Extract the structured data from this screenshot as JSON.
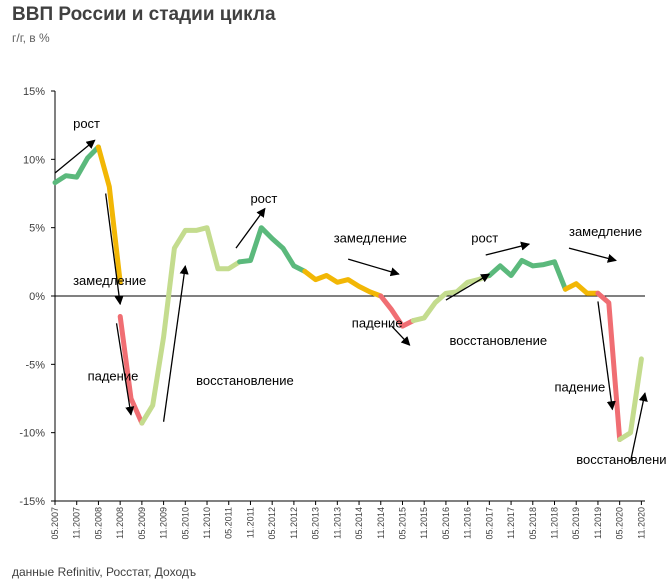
{
  "title": "ВВП России и стадии цикла",
  "subtitle": "г/г, в %",
  "source": "данные Refinitiv, Росстат, Доходъ",
  "colors": {
    "growth": "#5bb97c",
    "slowdown": "#f2b705",
    "decline": "#f06e73",
    "recovery": "#c4dc8e",
    "arrow": "#000000",
    "axis": "#000000",
    "text": "#404040"
  },
  "chart_data": {
    "type": "line",
    "title": "ВВП России и стадии цикла",
    "ylabel": "г/г, в %",
    "ylim": [
      -15,
      15
    ],
    "ytick_labels": [
      "15%",
      "10%",
      "5%",
      "0%",
      "-5%",
      "-10%",
      "-15%"
    ],
    "ytick_values": [
      15,
      10,
      5,
      0,
      -5,
      -10,
      -15
    ],
    "x_tick_labels": [
      "05.2007",
      "11.2007",
      "05.2008",
      "11.2008",
      "05.2009",
      "11.2009",
      "05.2010",
      "11.2010",
      "05.2011",
      "11.2011",
      "05.2012",
      "11.2012",
      "05.2013",
      "11.2013",
      "05.2014",
      "11.2014",
      "05.2015",
      "11.2015",
      "05.2016",
      "11.2016",
      "05.2017",
      "11.2017",
      "05.2018",
      "11.2018",
      "05.2019",
      "11.2019",
      "05.2020",
      "11.2020"
    ],
    "series": [
      {
        "phase": "рост",
        "x": [
          "2007-05",
          "2007-08",
          "2007-11",
          "2008-02",
          "2008-05"
        ],
        "values": [
          8.3,
          8.8,
          8.7,
          10.1,
          10.9
        ]
      },
      {
        "phase": "замедление",
        "x": [
          "2008-05",
          "2008-08",
          "2008-11"
        ],
        "values": [
          10.9,
          8.0,
          1.0
        ]
      },
      {
        "phase": "падение",
        "x": [
          "2008-11",
          "2009-02",
          "2009-05"
        ],
        "values": [
          -1.5,
          -7.5,
          -9.3
        ]
      },
      {
        "phase": "восстановление",
        "x": [
          "2009-05",
          "2009-08",
          "2009-11",
          "2010-02",
          "2010-05",
          "2010-08",
          "2010-11",
          "2011-02",
          "2011-05",
          "2011-08"
        ],
        "values": [
          -9.3,
          -8.0,
          -3.0,
          3.5,
          4.8,
          4.8,
          5.0,
          2.0,
          2.0,
          2.5
        ]
      },
      {
        "phase": "рост",
        "x": [
          "2011-08",
          "2011-11",
          "2012-02",
          "2012-05",
          "2012-08",
          "2012-11",
          "2013-02"
        ],
        "values": [
          2.5,
          2.6,
          5.0,
          4.2,
          3.5,
          2.2,
          1.8
        ]
      },
      {
        "phase": "замедление",
        "x": [
          "2013-02",
          "2013-05",
          "2013-08",
          "2013-11",
          "2014-02",
          "2014-05",
          "2014-08",
          "2014-11"
        ],
        "values": [
          1.8,
          1.2,
          1.5,
          1.0,
          1.2,
          0.7,
          0.3,
          0.0
        ]
      },
      {
        "phase": "падение",
        "x": [
          "2014-11",
          "2015-02",
          "2015-05",
          "2015-08"
        ],
        "values": [
          0.0,
          -1.0,
          -2.2,
          -1.8
        ]
      },
      {
        "phase": "восстановление",
        "x": [
          "2015-08",
          "2015-11",
          "2016-02",
          "2016-05",
          "2016-08",
          "2016-11",
          "2017-02",
          "2017-05"
        ],
        "values": [
          -1.8,
          -1.6,
          -0.5,
          0.2,
          0.3,
          1.0,
          1.2,
          1.5
        ]
      },
      {
        "phase": "рост",
        "x": [
          "2017-05",
          "2017-08",
          "2017-11",
          "2018-02",
          "2018-05",
          "2018-08",
          "2018-11",
          "2019-02"
        ],
        "values": [
          1.5,
          2.2,
          1.5,
          2.6,
          2.2,
          2.3,
          2.5,
          0.5
        ]
      },
      {
        "phase": "замедление",
        "x": [
          "2019-02",
          "2019-05",
          "2019-08",
          "2019-11"
        ],
        "values": [
          0.5,
          0.9,
          0.2,
          0.2
        ]
      },
      {
        "phase": "падение",
        "x": [
          "2019-11",
          "2020-02",
          "2020-05"
        ],
        "values": [
          0.2,
          -0.5,
          -10.5
        ]
      },
      {
        "phase": "восстановление",
        "x": [
          "2020-05",
          "2020-08",
          "2020-11"
        ],
        "values": [
          -10.5,
          -10.0,
          -4.6
        ]
      }
    ],
    "annotations": [
      {
        "text": "рост",
        "x": "2007-10",
        "y": 12.3
      },
      {
        "text": "замедление",
        "x": "2007-10",
        "y": 0.8
      },
      {
        "text": "падение",
        "x": "2008-02",
        "y": -6.2
      },
      {
        "text": "восстановление",
        "x": "2010-08",
        "y": -6.5
      },
      {
        "text": "рост",
        "x": "2011-11",
        "y": 6.8
      },
      {
        "text": "замедление",
        "x": "2013-10",
        "y": 3.9
      },
      {
        "text": "падение",
        "x": "2014-03",
        "y": -2.3
      },
      {
        "text": "восстановление",
        "x": "2016-06",
        "y": -3.6
      },
      {
        "text": "рост",
        "x": "2016-12",
        "y": 3.9
      },
      {
        "text": "замедление",
        "x": "2019-03",
        "y": 4.4
      },
      {
        "text": "падение",
        "x": "2018-11",
        "y": -7.0
      },
      {
        "text": "восстановление",
        "x": "2019-05",
        "y": -12.3
      }
    ],
    "arrows": [
      {
        "from": [
          "2007-05",
          9.0
        ],
        "to": [
          "2008-04",
          11.4
        ]
      },
      {
        "from": [
          "2008-07",
          7.5
        ],
        "to": [
          "2008-11",
          -0.6
        ]
      },
      {
        "from": [
          "2008-10",
          -2.0
        ],
        "to": [
          "2009-02",
          -8.7
        ]
      },
      {
        "from": [
          "2009-11",
          -9.2
        ],
        "to": [
          "2010-05",
          2.2
        ]
      },
      {
        "from": [
          "2011-07",
          3.5
        ],
        "to": [
          "2012-03",
          6.4
        ]
      },
      {
        "from": [
          "2014-02",
          2.7
        ],
        "to": [
          "2015-04",
          1.6
        ]
      },
      {
        "from": [
          "2015-02",
          -2.2
        ],
        "to": [
          "2015-07",
          -3.6
        ]
      },
      {
        "from": [
          "2016-05",
          -0.3
        ],
        "to": [
          "2017-05",
          1.6
        ]
      },
      {
        "from": [
          "2017-04",
          3.0
        ],
        "to": [
          "2018-04",
          3.8
        ]
      },
      {
        "from": [
          "2019-03",
          3.5
        ],
        "to": [
          "2020-04",
          2.6
        ]
      },
      {
        "from": [
          "2019-11",
          -0.4
        ],
        "to": [
          "2020-03",
          -8.3
        ]
      },
      {
        "from": [
          "2020-08",
          -12.1
        ],
        "to": [
          "2020-12",
          -7.1
        ]
      }
    ]
  }
}
